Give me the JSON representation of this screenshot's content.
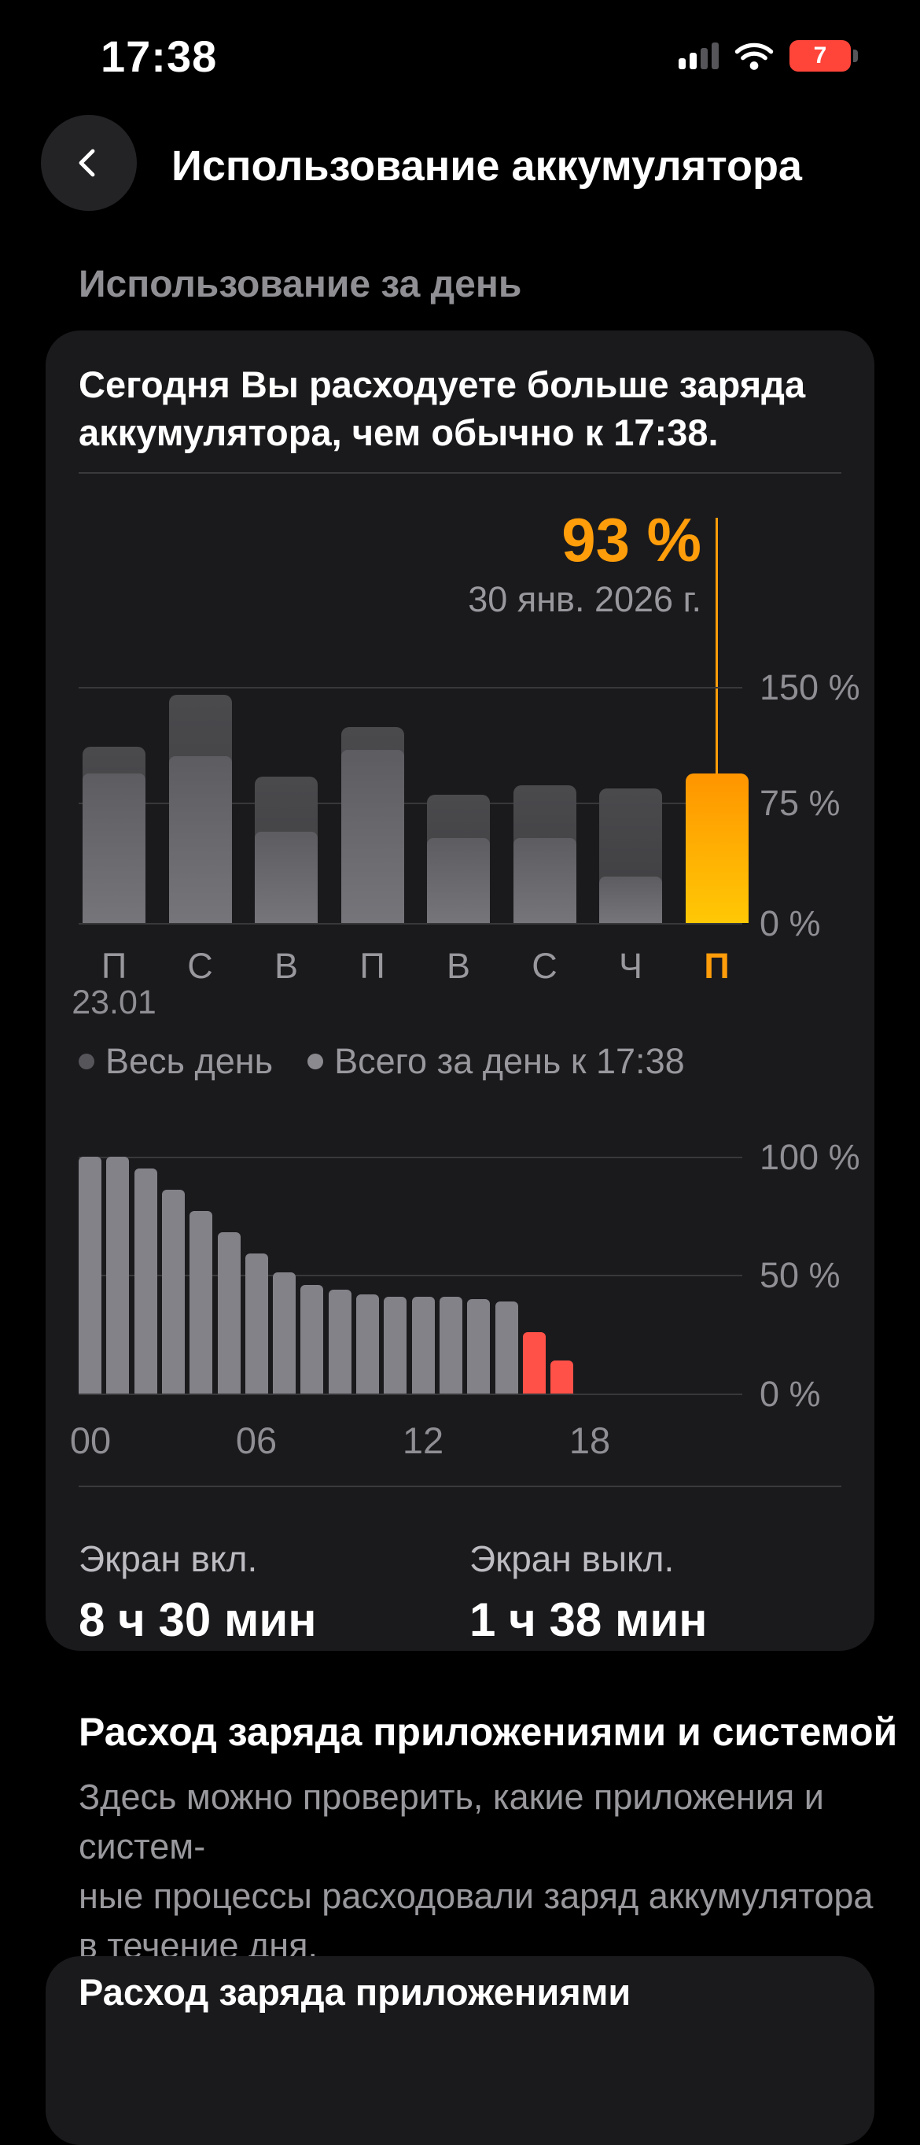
{
  "status_bar": {
    "time": "17:38",
    "battery_level": "7"
  },
  "header": {
    "title": "Использование аккумулятора"
  },
  "section_label": "Использование за день",
  "usage_card": {
    "message_lines": [
      "Сегодня Вы расходуете больше заряда",
      "аккумулятора, чем обычно к 17:38."
    ],
    "screen_on_label": "Экран вкл.",
    "screen_on_value": "8 ч 30 мин",
    "screen_off_label": "Экран выкл.",
    "screen_off_value": "1 ч 38 мин"
  },
  "chart_data": [
    {
      "type": "bar",
      "categories": [
        "П",
        "С",
        "В",
        "П",
        "В",
        "С",
        "Ч",
        "П"
      ],
      "first_category_date": "23.01",
      "series": [
        {
          "name": "Весь день",
          "values": [
            110,
            142,
            91,
            122,
            80,
            86,
            84,
            null
          ]
        },
        {
          "name": "Всего за день к 17:38",
          "values": [
            93,
            104,
            57,
            108,
            53,
            53,
            29,
            93
          ]
        }
      ],
      "today_index": 7,
      "highlight": {
        "label": "93 %",
        "value": 93,
        "date": "30 янв. 2026 г."
      },
      "yticks": [
        "150 %",
        "75 %",
        "0 %"
      ],
      "ylim": [
        0,
        150
      ],
      "legend_position": "bottom-left",
      "grid": true
    },
    {
      "type": "bar",
      "values": [
        100,
        100,
        95,
        86,
        77,
        68,
        59,
        51,
        46,
        44,
        42,
        41,
        41,
        41,
        40,
        39,
        26,
        14
      ],
      "red_from_index": 16,
      "xticks": [
        "00",
        "06",
        "12",
        "18"
      ],
      "xtick_slots": [
        0,
        6,
        12,
        18
      ],
      "yticks": [
        "100 %",
        "50 %",
        "0 %"
      ],
      "ylim": [
        0,
        100
      ],
      "grid": true
    }
  ],
  "apps_section": {
    "title": "Расход заряда приложениями и системой",
    "description_lines": [
      "Здесь можно проверить, какие приложения и систем-",
      "ные процессы расходовали заряд аккумулятора",
      "в течение дня."
    ],
    "apps_card_title": "Расход заряда приложениями"
  },
  "colors": {
    "accent_orange": "#ff9d0a",
    "alert_red": "#ff5147",
    "battery_badge_red": "#ff453a",
    "card_background": "#1a1a1d"
  }
}
